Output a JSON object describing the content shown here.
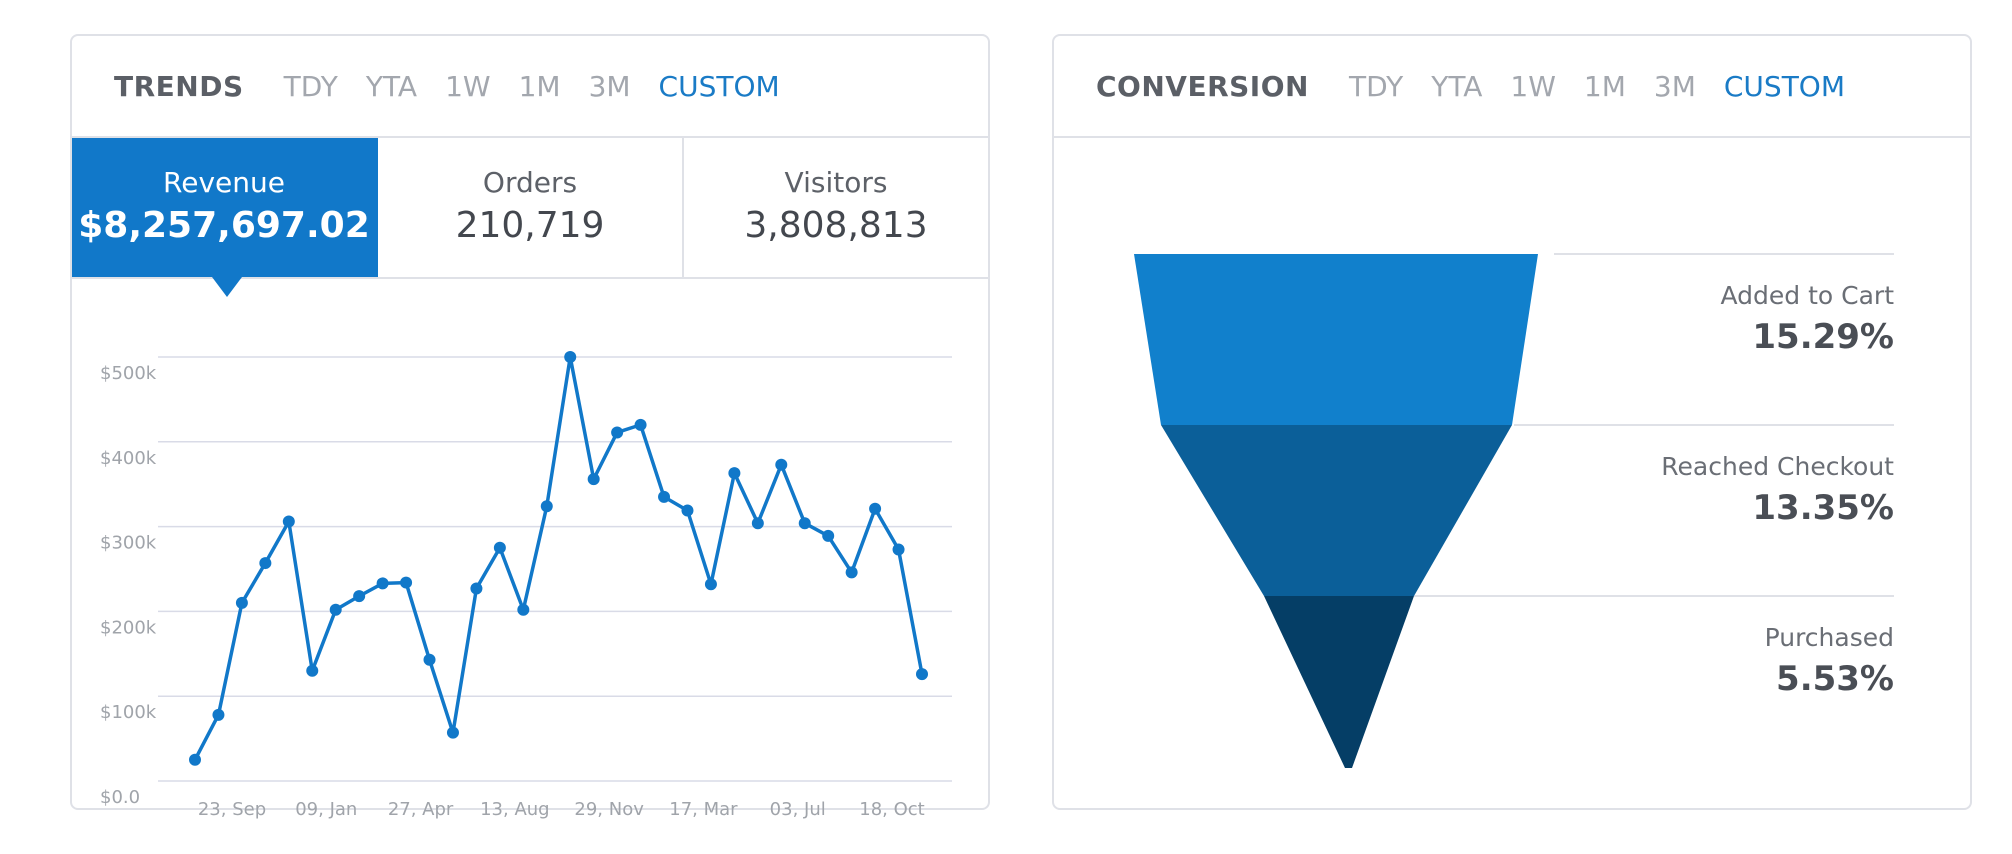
{
  "colors": {
    "accent": "#1178c9",
    "funnel": [
      "#1180cc",
      "#0b5f99",
      "#053e66"
    ]
  },
  "trends": {
    "title": "TRENDS",
    "ranges": [
      "TDY",
      "YTA",
      "1W",
      "1M",
      "3M",
      "CUSTOM"
    ],
    "active_range": "CUSTOM",
    "metrics": [
      {
        "label": "Revenue",
        "value": "$8,257,697.02"
      },
      {
        "label": "Orders",
        "value": "210,719"
      },
      {
        "label": "Visitors",
        "value": "3,808,813"
      }
    ],
    "active_metric": "Revenue"
  },
  "chart_data": {
    "type": "line",
    "ylim": [
      0,
      500000
    ],
    "ytick_labels": [
      "$0.0",
      "$100k",
      "$200k",
      "$300k",
      "$400k",
      "$500k"
    ],
    "xtick_labels": [
      "23, Sep",
      "09, Jan",
      "27, Apr",
      "13, Aug",
      "29, Nov",
      "17, Mar",
      "03, Jul",
      "18, Oct"
    ],
    "grid": true,
    "series": [
      {
        "values": [
          25000,
          78000,
          210000,
          257000,
          306000,
          130000,
          202000,
          218000,
          233000,
          234000,
          143000,
          57000,
          227000,
          275000,
          202000,
          324000,
          500000,
          356000,
          411000,
          420000,
          335000,
          319000,
          232000,
          363000,
          304000,
          373000,
          304000,
          289000,
          246000,
          321000,
          273000,
          126000
        ]
      }
    ]
  },
  "conversion": {
    "title": "CONVERSION",
    "ranges": [
      "TDY",
      "YTA",
      "1W",
      "1M",
      "3M",
      "CUSTOM"
    ],
    "active_range": "CUSTOM",
    "stages": [
      {
        "label": "Added to Cart",
        "value": "15.29%"
      },
      {
        "label": "Reached Checkout",
        "value": "13.35%"
      },
      {
        "label": "Purchased",
        "value": "5.53%"
      }
    ]
  }
}
